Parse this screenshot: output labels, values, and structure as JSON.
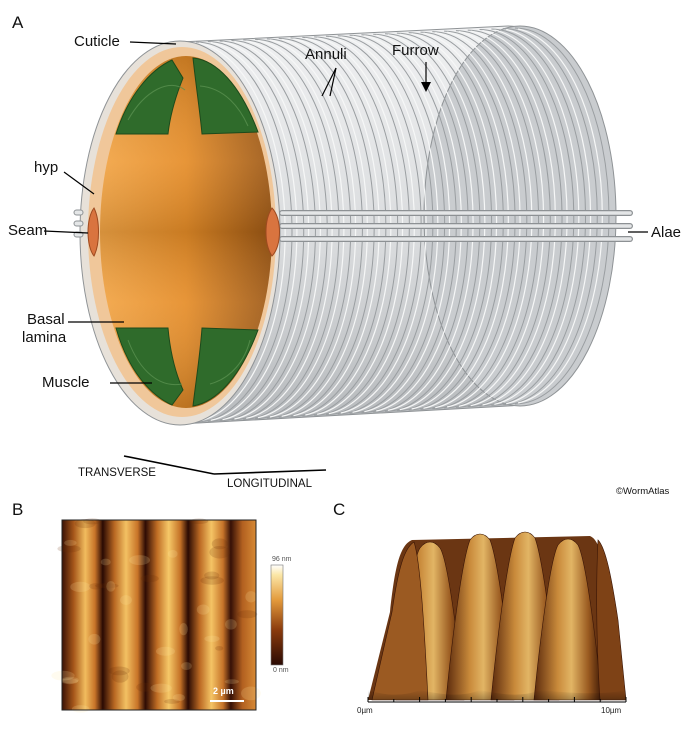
{
  "panels": {
    "a": "A",
    "b": "B",
    "c": "C"
  },
  "labels": {
    "cuticle": "Cuticle",
    "annuli": "Annuli",
    "furrow": "Furrow",
    "hyp": "hyp",
    "seam": "Seam",
    "alae": "Alae",
    "basal_lamina_1": "Basal",
    "basal_lamina_2": "lamina",
    "muscle": "Muscle"
  },
  "orientation": {
    "transverse": "TRANSVERSE",
    "longitudinal": "LONGITUDINAL"
  },
  "credit": "©WormAtlas",
  "panel_b": {
    "scale_max": "96 nm",
    "scale_min": "0 nm",
    "scale_bar": "2 µm"
  },
  "panel_c": {
    "axis_start": "0µm",
    "axis_end": "10µm",
    "axis_ticks": 10
  },
  "colors": {
    "cuticle": "#d2d4d6",
    "hypodermis": "#f0c79a",
    "interior": "#e8952e",
    "muscle": "#2f6b2b",
    "seam": "#d9743f",
    "afm_dark": "#3a1205",
    "afm_light": "#f3c163"
  }
}
